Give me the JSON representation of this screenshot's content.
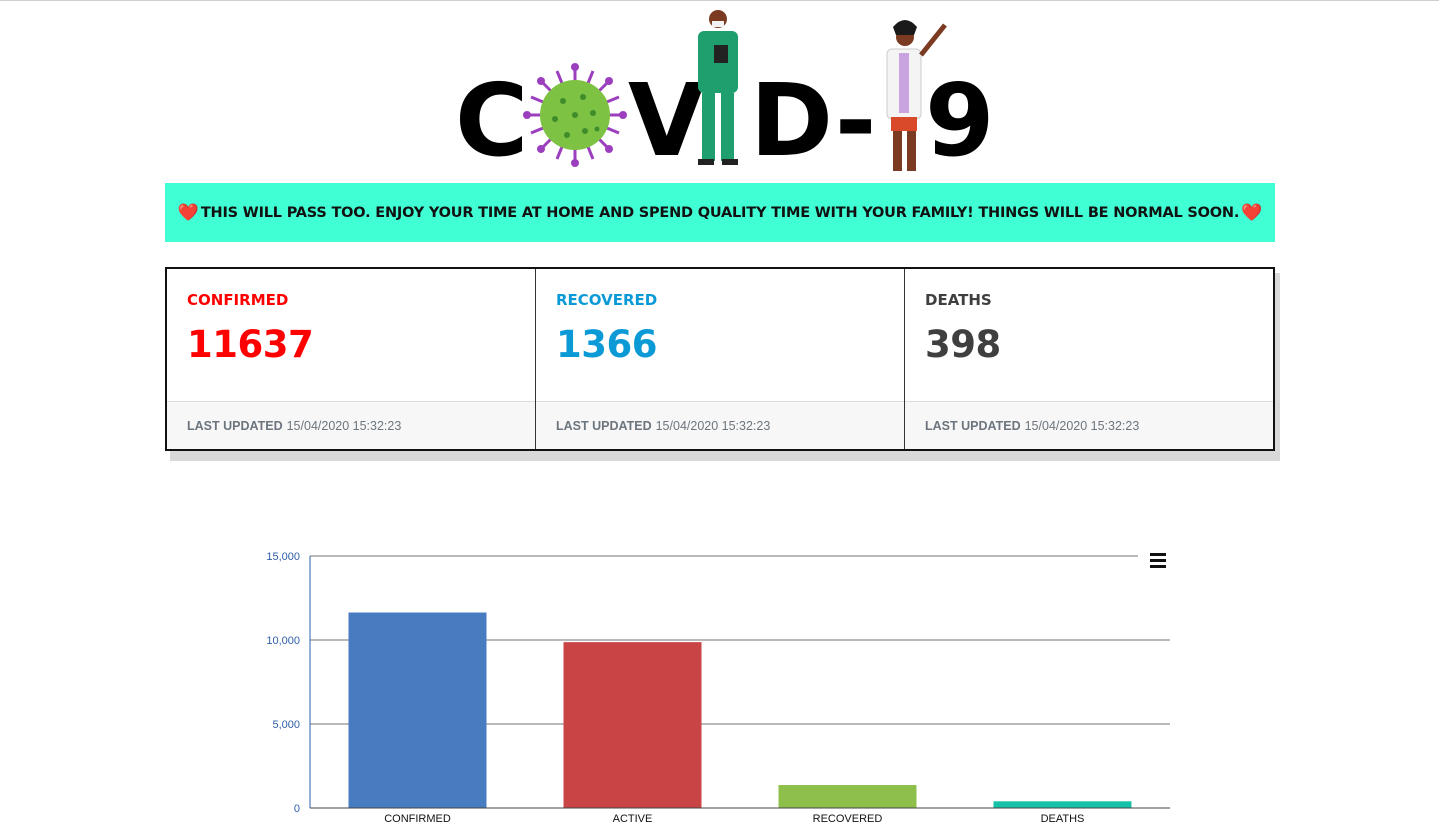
{
  "logo": {
    "text": "COVID-19"
  },
  "banner": {
    "heart": "❤️",
    "message": "THIS WILL PASS TOO. ENJOY YOUR TIME AT HOME AND SPEND QUALITY TIME WITH YOUR FAMILY! THINGS WILL BE NORMAL SOON."
  },
  "cards": [
    {
      "title": "CONFIRMED",
      "value": "11637",
      "footer_label": "LAST UPDATED",
      "footer_time": "15/04/2020 15:32:23",
      "color": "#ff0000"
    },
    {
      "title": "RECOVERED",
      "value": "1366",
      "footer_label": "LAST UPDATED",
      "footer_time": "15/04/2020 15:32:23",
      "color": "#0b9ad6"
    },
    {
      "title": "DEATHS",
      "value": "398",
      "footer_label": "LAST UPDATED",
      "footer_time": "15/04/2020 15:32:23",
      "color": "#3f3f3f"
    }
  ],
  "chart_data": {
    "type": "bar",
    "categories": [
      "CONFIRMED",
      "ACTIVE",
      "RECOVERED",
      "DEATHS"
    ],
    "values": [
      11637,
      9873,
      1366,
      398
    ],
    "colors": [
      "#477dc0",
      "#c94545",
      "#8dbf4a",
      "#14c2a8"
    ],
    "ylim": [
      0,
      15000
    ],
    "yticks": [
      0,
      5000,
      10000,
      15000
    ],
    "ytick_labels": [
      "0",
      "5,000",
      "10,000",
      "15,000"
    ],
    "grid": true,
    "menu_icon": "hamburger-menu-icon"
  }
}
